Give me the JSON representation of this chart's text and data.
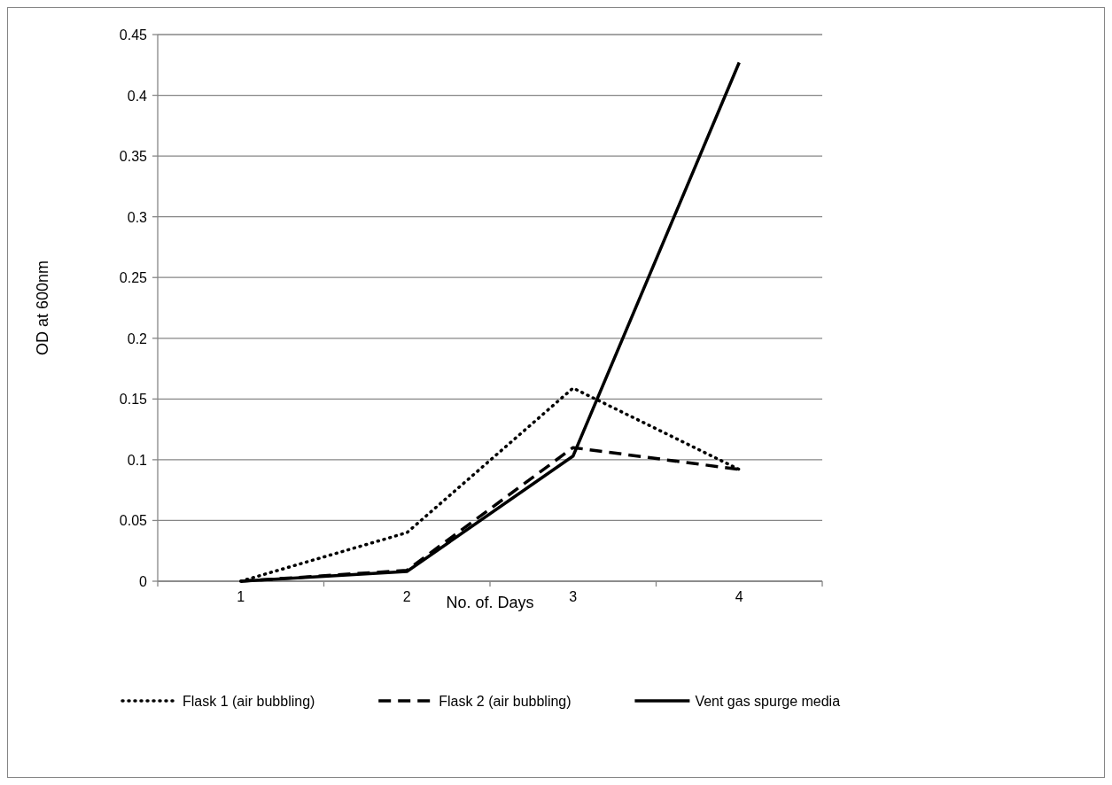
{
  "chart_data": {
    "type": "line",
    "xlabel": "No. of. Days",
    "ylabel": "OD at 600nm",
    "categories": [
      "1",
      "2",
      "3",
      "4"
    ],
    "ylim": [
      0,
      0.45
    ],
    "yticks": [
      0,
      0.05,
      0.1,
      0.15,
      0.2,
      0.25,
      0.3,
      0.35,
      0.4,
      0.45
    ],
    "grid": "y",
    "legend": "bottom",
    "marker": "none",
    "series": [
      {
        "name": "Flask 1 (air bubbling)",
        "color": "#000000",
        "line_style": "dotted",
        "values": [
          0,
          0.04,
          0.159,
          0.092
        ]
      },
      {
        "name": "Flask 2 (air bubbling)",
        "color": "#000000",
        "line_style": "dashed",
        "values": [
          0,
          0.009,
          0.11,
          0.092
        ]
      },
      {
        "name": "Vent gas spurge media",
        "color": "#000000",
        "line_style": "solid",
        "values": [
          0,
          0.008,
          0.103,
          0.427
        ]
      }
    ]
  }
}
